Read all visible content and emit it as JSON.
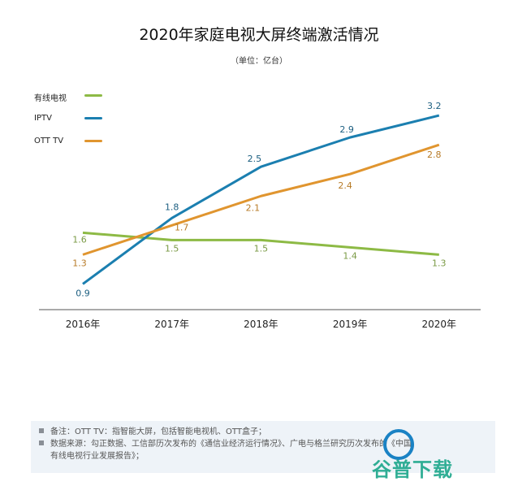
{
  "chart_data": {
    "type": "line",
    "title": "2020年家庭电视大屏终端激活情况",
    "subtitle": "（单位：亿台）",
    "categories": [
      "2016年",
      "2017年",
      "2018年",
      "2019年",
      "2020年"
    ],
    "series": [
      {
        "name": "有线电视",
        "color": "#8dba45",
        "values": [
          1.6,
          1.5,
          1.5,
          1.4,
          1.3
        ]
      },
      {
        "name": "IPTV",
        "color": "#1b7fb0",
        "values": [
          0.9,
          1.8,
          2.5,
          2.9,
          3.2
        ]
      },
      {
        "name": "OTT TV",
        "color": "#e0952f",
        "values": [
          1.3,
          1.7,
          2.1,
          2.4,
          2.8
        ]
      }
    ],
    "ylim": [
      0.55,
      3.7
    ],
    "grid": false,
    "legend_position": "top-left"
  },
  "notes": [
    "备注：OTT TV：指智能大屏，包括智能电视机、OTT盒子；",
    "数据来源：勾正数据、工信部历次发布的《通信业经济运行情况》、广电与格兰研究历次发布的《中国",
    "有线电视行业发展报告》；"
  ],
  "watermark": "谷普下载"
}
